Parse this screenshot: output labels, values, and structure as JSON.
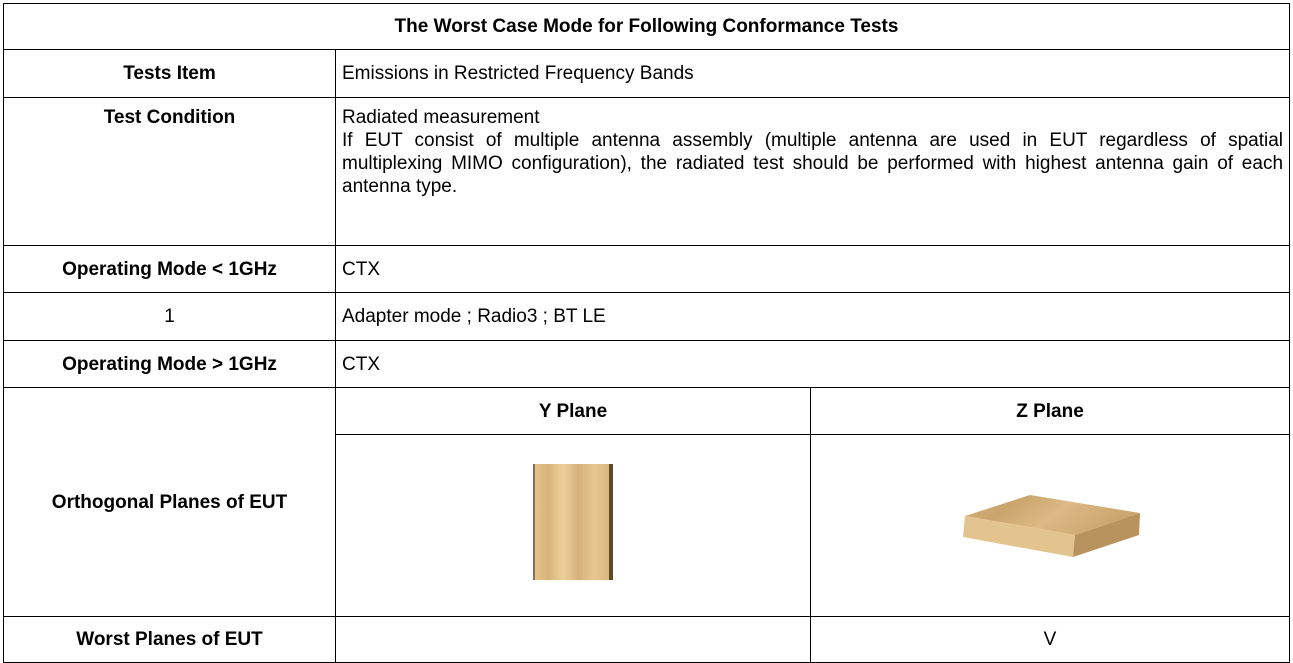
{
  "title": "The Worst Case Mode for Following Conformance Tests",
  "tests_item": {
    "label": "Tests Item",
    "value": "Emissions in Restricted Frequency Bands"
  },
  "test_condition": {
    "label": "Test Condition",
    "lines": [
      "Radiated measurement",
      "If EUT consist of multiple antenna assembly (multiple antenna are used in EUT regardless of spatial multiplexing MIMO configuration), the radiated test should be performed with highest antenna gain of each antenna type."
    ]
  },
  "operating_mode_below_1ghz": {
    "label": "Operating Mode < 1GHz",
    "value": "CTX"
  },
  "modes": [
    {
      "number": 1,
      "value": "Adapter mode ; Radio3 ; BT LE"
    }
  ],
  "operating_mode_above_1ghz": {
    "label": "Operating Mode > 1GHz",
    "value": "CTX"
  },
  "orthogonal_planes": {
    "label": "Orthogonal Planes of EUT",
    "planes": [
      "Y Plane",
      "Z Plane"
    ]
  },
  "worst_planes": {
    "label": "Worst Planes of EUT",
    "z_plane_mark": "V"
  }
}
